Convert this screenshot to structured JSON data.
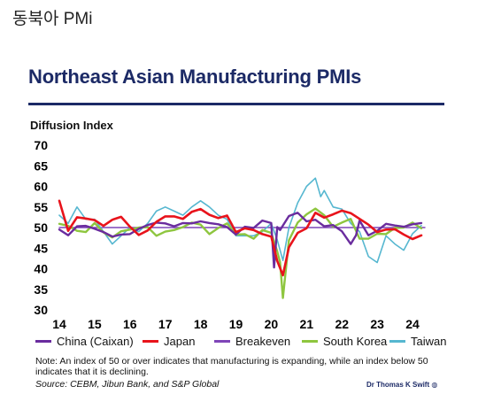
{
  "page": {
    "heading": "동북아 PMi"
  },
  "slide": {
    "title": "Northeast Asian Manufacturing PMIs",
    "note": "Note: An index of 50 or over indicates that manufacturing is expanding, while an index below 50 indicates that it is declining.",
    "source": "Source: CEBM, Jibun Bank, and S&P Global",
    "author": "Dr Thomas K Swift"
  },
  "chart_data": {
    "type": "line",
    "ylabel": "Diffusion Index",
    "xlabel": "",
    "ylim": [
      30,
      70
    ],
    "xlim": [
      2014,
      2024.35
    ],
    "yticks": [
      "30",
      "35",
      "40",
      "45",
      "50",
      "55",
      "60",
      "65",
      "70"
    ],
    "xticks": [
      "14",
      "15",
      "16",
      "17",
      "18",
      "19",
      "20",
      "21",
      "22",
      "23",
      "24"
    ],
    "grid": false,
    "legend_position": "bottom",
    "series": [
      {
        "name": "China (Caixan)",
        "color": "#6a2c9e",
        "width": 2.4,
        "x": [
          2014,
          2014.25,
          2014.5,
          2014.75,
          2015,
          2015.25,
          2015.5,
          2015.75,
          2016,
          2016.25,
          2016.5,
          2016.75,
          2017,
          2017.25,
          2017.5,
          2017.75,
          2018,
          2018.25,
          2018.5,
          2018.75,
          2019,
          2019.25,
          2019.5,
          2019.75,
          2020,
          2020.08,
          2020.17,
          2020.25,
          2020.5,
          2020.75,
          2021,
          2021.25,
          2021.5,
          2021.75,
          2022,
          2022.25,
          2022.4,
          2022.5,
          2022.75,
          2023,
          2023.25,
          2023.5,
          2023.75,
          2024,
          2024.25
        ],
        "y": [
          49.5,
          48.1,
          50.3,
          50.4,
          49.7,
          48.9,
          47.8,
          48.3,
          48.4,
          49.7,
          50.6,
          51.2,
          51.0,
          50.3,
          51.1,
          51.0,
          51.5,
          51.1,
          50.8,
          50.1,
          48.3,
          50.2,
          49.9,
          51.7,
          51.1,
          40.3,
          50.1,
          49.4,
          52.8,
          53.6,
          51.5,
          51.9,
          50.3,
          50.6,
          49.1,
          46.0,
          48.1,
          51.7,
          48.1,
          49.2,
          50.9,
          50.5,
          50.2,
          50.8,
          51.1
        ]
      },
      {
        "name": "Japan",
        "color": "#e8131b",
        "width": 2.6,
        "x": [
          2014,
          2014.25,
          2014.5,
          2014.75,
          2015,
          2015.25,
          2015.5,
          2015.75,
          2016,
          2016.25,
          2016.5,
          2016.75,
          2017,
          2017.25,
          2017.5,
          2017.75,
          2018,
          2018.25,
          2018.5,
          2018.75,
          2019,
          2019.25,
          2019.5,
          2019.75,
          2020,
          2020.17,
          2020.33,
          2020.5,
          2020.75,
          2021,
          2021.25,
          2021.5,
          2021.75,
          2022,
          2022.25,
          2022.5,
          2022.75,
          2023,
          2023.25,
          2023.5,
          2023.75,
          2024,
          2024.25
        ],
        "y": [
          56.5,
          49.2,
          52.5,
          52.2,
          51.8,
          50.4,
          51.9,
          52.6,
          50.2,
          48.2,
          49.3,
          51.4,
          52.7,
          52.7,
          52.1,
          53.8,
          54.5,
          53.1,
          52.3,
          52.9,
          48.9,
          49.8,
          49.4,
          48.4,
          47.8,
          41.9,
          38.4,
          45.2,
          48.7,
          49.8,
          53.6,
          52.4,
          53.2,
          54.1,
          53.5,
          52.1,
          50.7,
          48.9,
          49.5,
          49.6,
          48.3,
          47.2,
          48.1
        ]
      },
      {
        "name": "Breakeven",
        "color": "#7f45b8",
        "width": 1.4,
        "x": [
          2014,
          2024.35
        ],
        "y": [
          50,
          50
        ]
      },
      {
        "name": "South Korea",
        "color": "#8ec63f",
        "width": 2.4,
        "x": [
          2014,
          2014.25,
          2014.5,
          2014.75,
          2015,
          2015.25,
          2015.5,
          2015.75,
          2016,
          2016.25,
          2016.5,
          2016.75,
          2017,
          2017.25,
          2017.5,
          2017.75,
          2018,
          2018.25,
          2018.5,
          2018.75,
          2019,
          2019.25,
          2019.5,
          2019.75,
          2020,
          2020.17,
          2020.25,
          2020.33,
          2020.5,
          2020.75,
          2021,
          2021.25,
          2021.5,
          2021.75,
          2022,
          2022.25,
          2022.5,
          2022.75,
          2023,
          2023.25,
          2023.5,
          2023.75,
          2024,
          2024.25
        ],
        "y": [
          50.9,
          50.4,
          49.2,
          48.9,
          51.1,
          48.8,
          47.6,
          49.1,
          49.5,
          50.0,
          50.1,
          48.0,
          49.0,
          49.4,
          50.1,
          51.2,
          50.7,
          48.4,
          49.9,
          51.0,
          48.3,
          48.4,
          47.3,
          49.4,
          48.7,
          44.2,
          41.6,
          32.9,
          46.9,
          51.2,
          53.2,
          54.6,
          53.0,
          50.2,
          51.2,
          52.1,
          47.3,
          47.3,
          48.5,
          48.4,
          49.9,
          50.0,
          51.2,
          49.8
        ]
      },
      {
        "name": "Taiwan",
        "color": "#56b7d0",
        "width": 1.6,
        "x": [
          2014,
          2014.25,
          2014.5,
          2014.75,
          2015,
          2015.25,
          2015.5,
          2015.75,
          2016,
          2016.25,
          2016.5,
          2016.75,
          2017,
          2017.25,
          2017.5,
          2017.75,
          2018,
          2018.25,
          2018.5,
          2018.75,
          2019,
          2019.25,
          2019.5,
          2019.75,
          2020,
          2020.17,
          2020.33,
          2020.5,
          2020.75,
          2021,
          2021.25,
          2021.4,
          2021.5,
          2021.75,
          2022,
          2022.25,
          2022.5,
          2022.75,
          2023,
          2023.25,
          2023.5,
          2023.75,
          2024,
          2024.25
        ],
        "y": [
          53.0,
          51.0,
          55.0,
          52.0,
          52.0,
          49.0,
          46.0,
          48.0,
          50.0,
          49.0,
          51.0,
          54.0,
          55.0,
          54.0,
          53.0,
          55.0,
          56.5,
          55.0,
          53.0,
          52.0,
          48.0,
          48.0,
          48.0,
          49.0,
          51.0,
          47.0,
          42.0,
          50.0,
          56.0,
          60.0,
          62.0,
          57.5,
          59.0,
          55.0,
          54.5,
          51.0,
          49.0,
          43.0,
          41.5,
          48.0,
          46.0,
          44.5,
          48.5,
          50.5
        ]
      }
    ]
  }
}
